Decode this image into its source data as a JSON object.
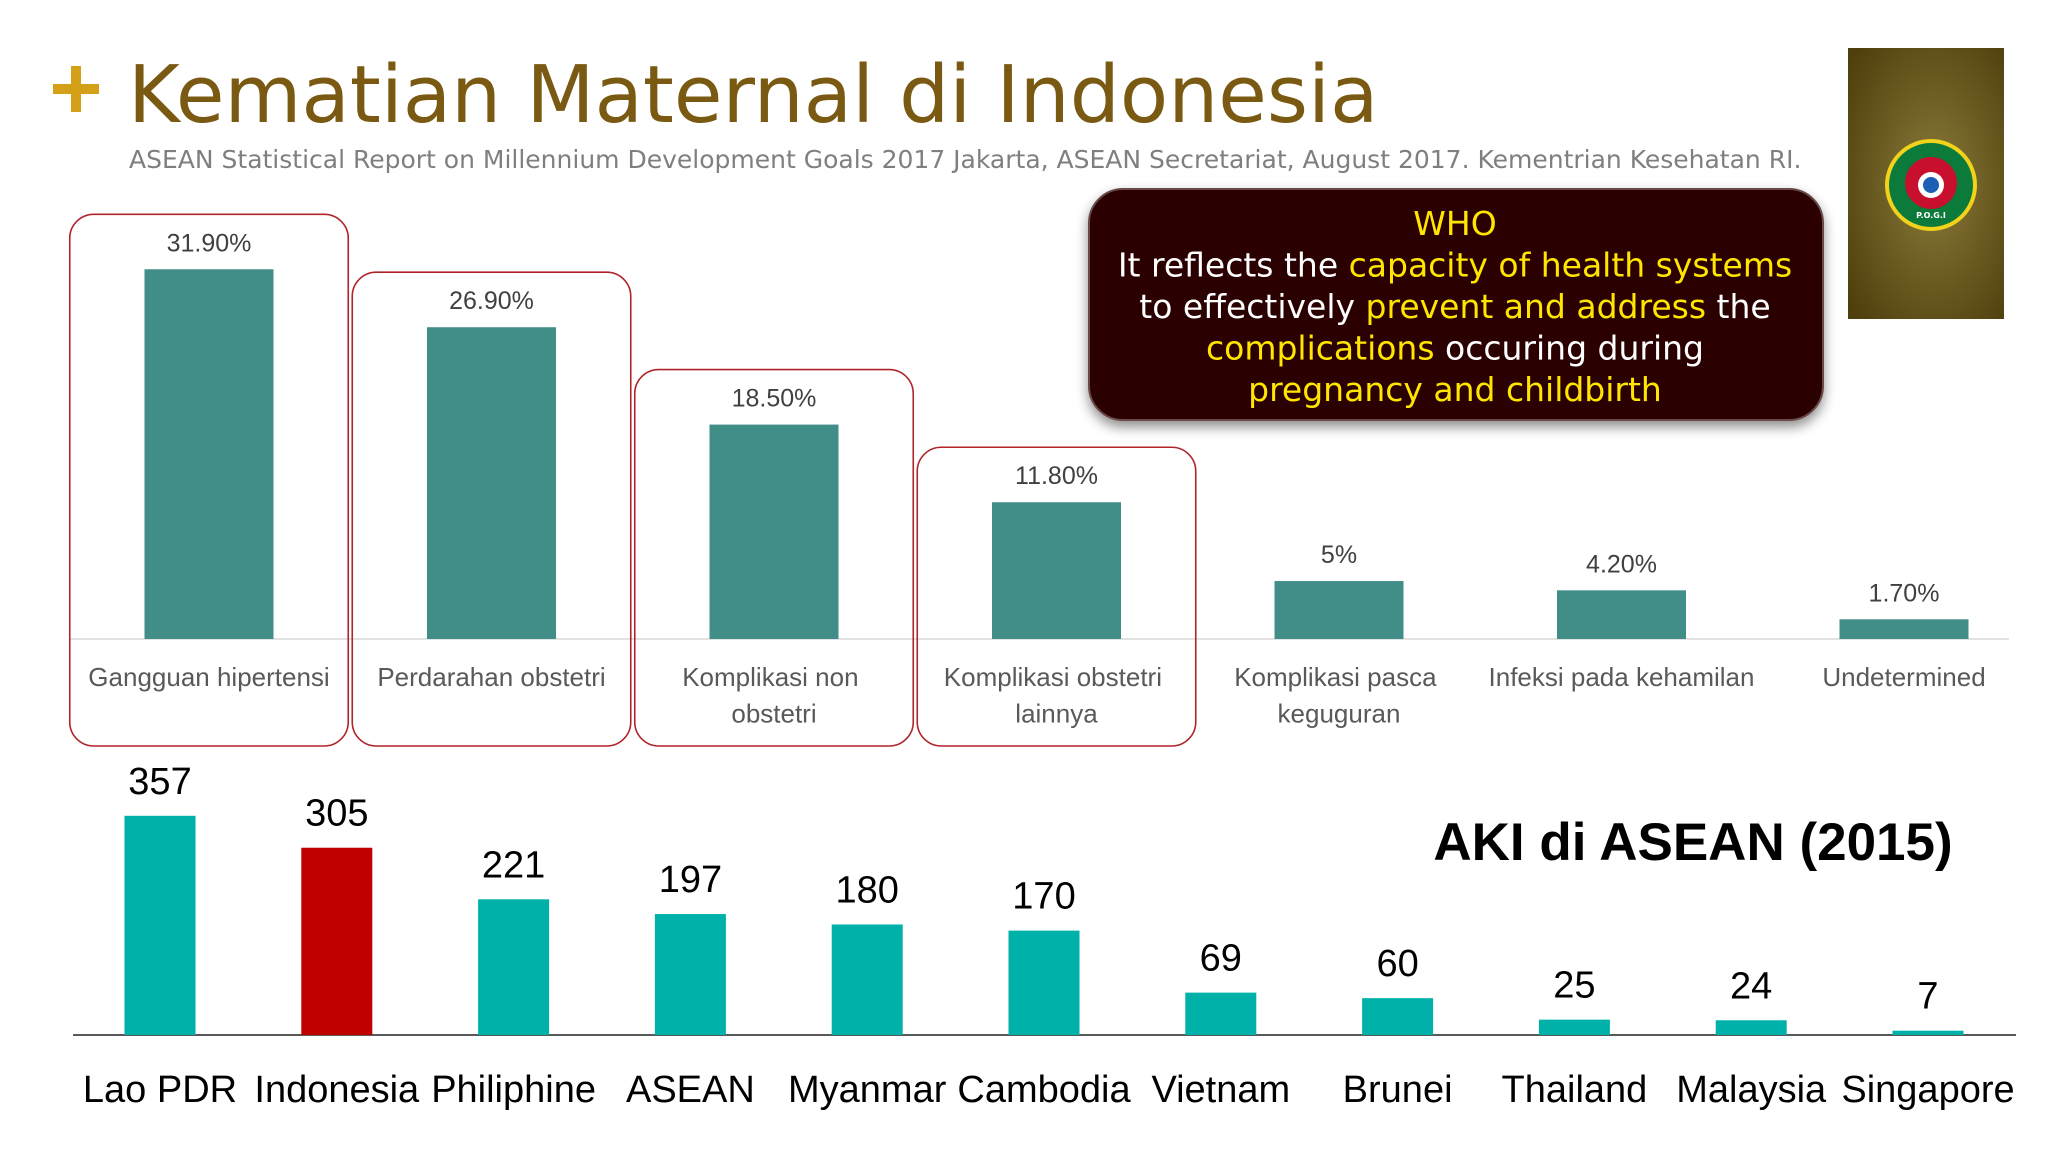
{
  "title": "Kematian Maternal di Indonesia",
  "subtitle": "ASEAN Statistical Report on Millennium Development Goals 2017 Jakarta, ASEAN Secretariat, August 2017. Kementrian Kesehatan RI.",
  "callout": {
    "lines": [
      [
        {
          "text": "WHO",
          "highlight": true
        }
      ],
      [
        {
          "text": "It reflects the ",
          "highlight": false
        },
        {
          "text": "capacity of health systems",
          "highlight": true
        }
      ],
      [
        {
          "text": "to effectively ",
          "highlight": false
        },
        {
          "text": "prevent and address",
          "highlight": true
        },
        {
          "text": " the",
          "highlight": false
        }
      ],
      [
        {
          "text": "complications",
          "highlight": true
        },
        {
          "text": " occuring during",
          "highlight": false
        }
      ],
      [
        {
          "text": "pregnancy and childbirth",
          "highlight": true
        }
      ]
    ]
  },
  "logo": {
    "label": "P.O.G.I"
  },
  "chart_data": [
    {
      "type": "bar",
      "categories": [
        "Gangguan hipertensi",
        "Perdarahan obstetri",
        "Komplikasi non obstetri",
        "Komplikasi obstetri lainnya",
        "Komplikasi pasca keguguran",
        "Infeksi pada kehamilan",
        "Undetermined"
      ],
      "values": [
        31.9,
        26.9,
        18.5,
        11.8,
        5,
        4.2,
        1.7
      ],
      "value_labels": [
        "31.90%",
        "26.90%",
        "18.50%",
        "11.80%",
        "5%",
        "4.20%",
        "1.70%"
      ],
      "color": "#418d87",
      "outlined": [
        true,
        true,
        true,
        true,
        false,
        false,
        false
      ],
      "outline_color": "#b0242a"
    },
    {
      "type": "bar",
      "title": "AKI di ASEAN (2015)",
      "categories": [
        "Lao PDR",
        "Indonesia",
        "Philiphine",
        "ASEAN",
        "Myanmar",
        "Cambodia",
        "Vietnam",
        "Brunei",
        "Thailand",
        "Malaysia",
        "Singapore"
      ],
      "values": [
        357,
        305,
        221,
        197,
        180,
        170,
        69,
        60,
        25,
        24,
        7
      ],
      "colors": [
        "#00b1a9",
        "#c00000",
        "#00b1a9",
        "#00b1a9",
        "#00b1a9",
        "#00b1a9",
        "#00b1a9",
        "#00b1a9",
        "#00b1a9",
        "#00b1a9",
        "#00b1a9"
      ]
    }
  ]
}
